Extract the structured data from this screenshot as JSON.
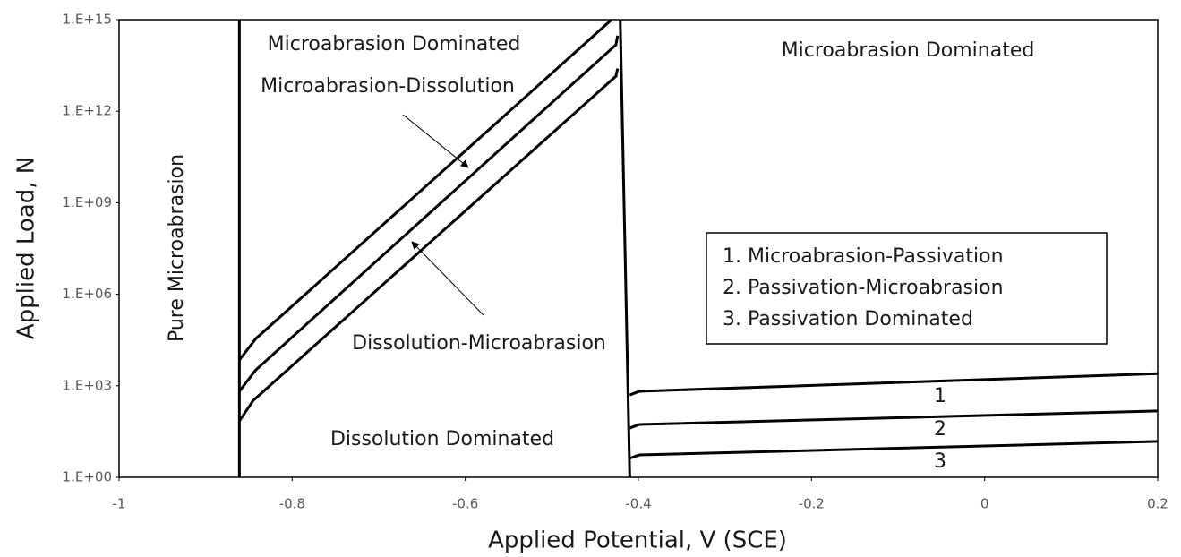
{
  "chart_data": {
    "type": "line",
    "xlabel": "Applied Potential, V (SCE)",
    "ylabel": "Applied Load, N",
    "xlim": [
      -1,
      0.2
    ],
    "xticks": [
      -1,
      -0.8,
      -0.6,
      -0.4,
      -0.2,
      0,
      0.2
    ],
    "ylim": [
      1,
      1000000000000000.0
    ],
    "yscale": "log",
    "yticks": [
      {
        "value": 1,
        "label": "1.E+00"
      },
      {
        "value": 1000,
        "label": "1.E+03"
      },
      {
        "value": 1000000,
        "label": "1.E+06"
      },
      {
        "value": 1000000000,
        "label": "1.E+09"
      },
      {
        "value": 1000000000000,
        "label": "1.E+12"
      },
      {
        "value": 1000000000000000,
        "label": "1.E+15"
      }
    ],
    "grid": false,
    "series": [
      {
        "color": "#000000",
        "x": [
          -0.861,
          -0.861
        ],
        "values": [
          1,
          1000000000000000.0
        ]
      },
      {
        "color": "#000000",
        "x": [
          -0.861,
          -0.842,
          -0.431
        ],
        "values": [
          7000,
          35000,
          1000000000000000.0
        ]
      },
      {
        "color": "#000000",
        "x": [
          -0.861,
          -0.842,
          -0.426,
          -0.424
        ],
        "values": [
          660,
          3300,
          150000000000000.0,
          300000000000000.0
        ]
      },
      {
        "color": "#000000",
        "x": [
          -0.861,
          -0.845,
          -0.426,
          -0.424
        ],
        "values": [
          70,
          330,
          14000000000000.0,
          25000000000000.0
        ]
      },
      {
        "color": "#000000",
        "x": [
          -0.421,
          -0.41
        ],
        "values": [
          1000000000000000.0,
          1
        ]
      },
      {
        "name": "1",
        "color": "#000000",
        "x": [
          -0.41,
          -0.399,
          0.2
        ],
        "values": [
          500,
          660,
          2500
        ]
      },
      {
        "name": "2",
        "color": "#000000",
        "x": [
          -0.41,
          -0.399,
          0.2
        ],
        "values": [
          41,
          54,
          150
        ]
      },
      {
        "name": "3",
        "color": "#000000",
        "x": [
          -0.41,
          -0.399,
          0.2
        ],
        "values": [
          4.2,
          5.4,
          15
        ]
      }
    ],
    "annotations": [
      "Microabrasion Dominated",
      "Microabrasion-Dissolution",
      "Dissolution-Microabrasion",
      "Dissolution Dominated",
      "Microabrasion Dominated",
      "Pure Microabrasion"
    ],
    "legend_box": [
      "1. Microabrasion-Passivation",
      "2. Passivation-Microabrasion",
      "3. Passivation Dominated"
    ]
  }
}
